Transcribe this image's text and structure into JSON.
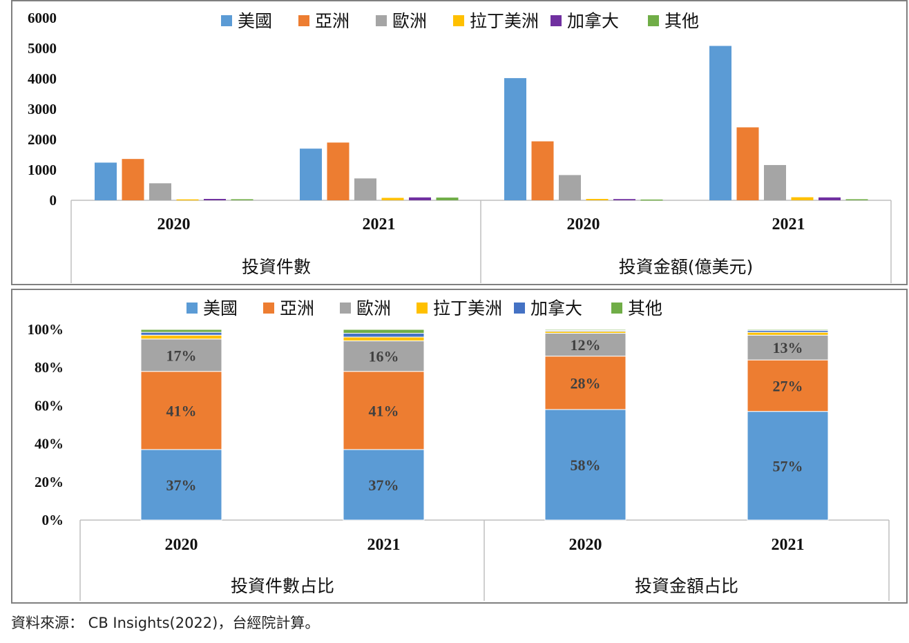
{
  "source_note": "資料來源： CB Insights(2022)，台經院計算。",
  "colors": {
    "美國": "#5b9bd5",
    "亞洲": "#ed7d31",
    "歐洲": "#a5a5a5",
    "拉丁美洲": "#ffc000",
    "加拿大_top": "#7030a0",
    "加拿大_bottom": "#4472c4",
    "其他": "#70ad47"
  },
  "chart_data": [
    {
      "type": "bar",
      "legend_position": "top",
      "legend": [
        "美國",
        "亞洲",
        "歐洲",
        "拉丁美洲",
        "加拿大",
        "其他"
      ],
      "y_ticks": [
        "6000",
        "5000",
        "4000",
        "3000",
        "2000",
        "1000",
        "0"
      ],
      "ylim": [
        0,
        6000
      ],
      "groups": [
        {
          "label": "投資件數",
          "years": [
            {
              "year": "2020",
              "values": [
                1240,
                1360,
                560,
                30,
                45,
                35
              ]
            },
            {
              "year": "2021",
              "values": [
                1700,
                1900,
                720,
                80,
                95,
                90
              ]
            }
          ]
        },
        {
          "label": "投資金額(億美元)",
          "years": [
            {
              "year": "2020",
              "values": [
                4020,
                1940,
                830,
                45,
                40,
                25
              ]
            },
            {
              "year": "2021",
              "values": [
                5080,
                2400,
                1160,
                100,
                95,
                35
              ]
            }
          ]
        }
      ]
    },
    {
      "type": "bar",
      "stacked": "percent",
      "legend_position": "top",
      "legend": [
        "美國",
        "亞洲",
        "歐洲",
        "拉丁美洲",
        "加拿大",
        "其他"
      ],
      "y_ticks": [
        "100%",
        "80%",
        "60%",
        "40%",
        "20%",
        "0%"
      ],
      "ylim": [
        0,
        100
      ],
      "groups": [
        {
          "label": "投資件數占比",
          "years": [
            {
              "year": "2020",
              "values": [
                37,
                41,
                17,
                2,
                1.5,
                1.5
              ],
              "labels": [
                "37%",
                "41%",
                "17%",
                "",
                "",
                ""
              ]
            },
            {
              "year": "2021",
              "values": [
                37,
                41,
                16,
                2,
                2,
                2
              ],
              "labels": [
                "37%",
                "41%",
                "16%",
                "",
                "",
                ""
              ]
            }
          ]
        },
        {
          "label": "投資金額占比",
          "years": [
            {
              "year": "2020",
              "values": [
                58,
                28,
                12,
                1,
                0.5,
                0.5
              ],
              "labels": [
                "58%",
                "28%",
                "12%",
                "",
                "",
                ""
              ]
            },
            {
              "year": "2021",
              "values": [
                57,
                27,
                13,
                1.5,
                1,
                0.5
              ],
              "labels": [
                "57%",
                "27%",
                "13%",
                "",
                "",
                ""
              ]
            }
          ]
        }
      ]
    }
  ]
}
